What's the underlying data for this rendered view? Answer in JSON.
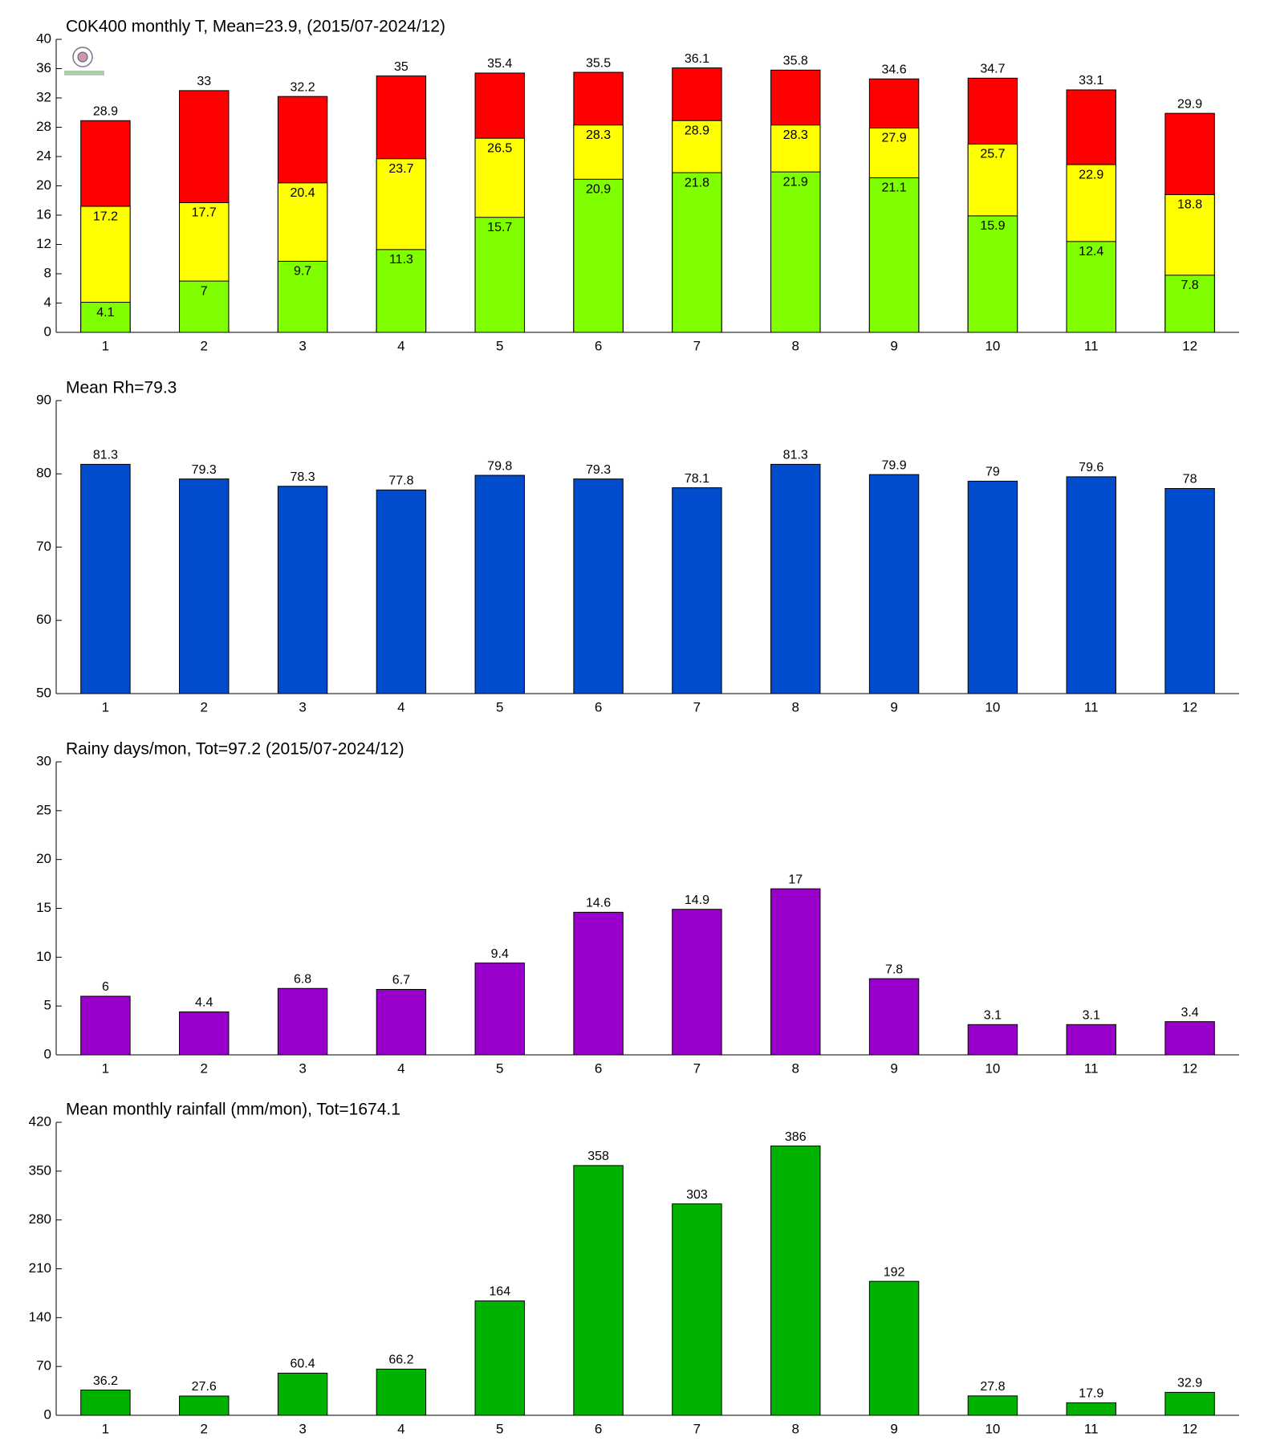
{
  "chart_data": [
    {
      "type": "bar",
      "title": "C0K400 monthly T, Mean=23.9, (2015/07-2024/12)",
      "categories": [
        "1",
        "2",
        "3",
        "4",
        "5",
        "6",
        "7",
        "8",
        "9",
        "10",
        "11",
        "12"
      ],
      "series": [
        {
          "color": "#ff0000",
          "values": [
            28.9,
            33,
            32.2,
            35,
            35.4,
            35.5,
            36.1,
            35.8,
            34.6,
            34.7,
            33.1,
            29.9
          ]
        },
        {
          "color": "#ffff00",
          "values": [
            17.2,
            17.7,
            20.4,
            23.7,
            26.5,
            28.3,
            28.9,
            28.3,
            27.9,
            25.7,
            22.9,
            18.8
          ]
        },
        {
          "color": "#80ff00",
          "values": [
            4.1,
            7,
            9.7,
            11.3,
            15.7,
            20.9,
            21.8,
            21.9,
            21.1,
            15.9,
            12.4,
            7.8
          ]
        }
      ],
      "ylim": [
        0,
        40
      ],
      "yticks": [
        0,
        4,
        8,
        12,
        16,
        20,
        24,
        28,
        32,
        36,
        40
      ]
    },
    {
      "type": "bar",
      "title": "Mean Rh=79.3",
      "categories": [
        "1",
        "2",
        "3",
        "4",
        "5",
        "6",
        "7",
        "8",
        "9",
        "10",
        "11",
        "12"
      ],
      "series": [
        {
          "color": "#004ccc",
          "values": [
            81.3,
            79.3,
            78.3,
            77.8,
            79.8,
            79.3,
            78.1,
            81.3,
            79.9,
            79,
            79.6,
            78
          ]
        }
      ],
      "ylim": [
        50,
        90
      ],
      "yticks": [
        50,
        60,
        70,
        80,
        90
      ]
    },
    {
      "type": "bar",
      "title": "Rainy days/mon, Tot=97.2 (2015/07-2024/12)",
      "categories": [
        "1",
        "2",
        "3",
        "4",
        "5",
        "6",
        "7",
        "8",
        "9",
        "10",
        "11",
        "12"
      ],
      "series": [
        {
          "color": "#9900cc",
          "values": [
            6,
            4.4,
            6.8,
            6.7,
            9.4,
            14.6,
            14.9,
            17,
            7.8,
            3.1,
            3.1,
            3.4
          ]
        }
      ],
      "ylim": [
        0,
        30
      ],
      "yticks": [
        0,
        5,
        10,
        15,
        20,
        25,
        30
      ]
    },
    {
      "type": "bar",
      "title": "Mean monthly rainfall (mm/mon), Tot=1674.1",
      "categories": [
        "1",
        "2",
        "3",
        "4",
        "5",
        "6",
        "7",
        "8",
        "9",
        "10",
        "11",
        "12"
      ],
      "series": [
        {
          "color": "#00b300",
          "values": [
            36.2,
            27.6,
            60.4,
            66.2,
            164,
            358,
            303,
            386,
            192,
            27.8,
            17.9,
            32.9
          ]
        }
      ],
      "ylim": [
        0,
        420
      ],
      "yticks": [
        0,
        70,
        140,
        210,
        280,
        350,
        420
      ]
    }
  ]
}
